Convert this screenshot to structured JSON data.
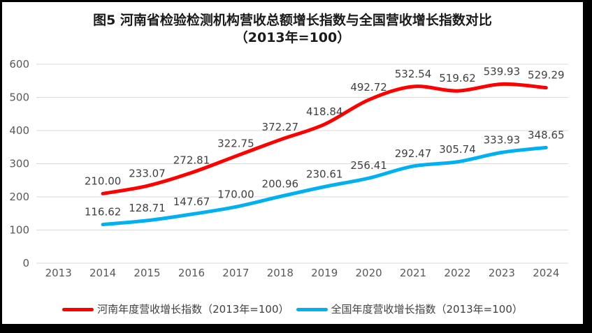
{
  "title": {
    "line1": "图5  河南省检验检测机构营收总额增长指数与全国营收增长指数对比",
    "line2": "（2013年=100）"
  },
  "colors": {
    "henan_line": "#FF0000",
    "national_line": "#00B0F0",
    "gridline": "#D9D9D9",
    "axis_text": "#595959",
    "label_text": "#404040",
    "frame_border": "#000000"
  },
  "chart_data": {
    "type": "line",
    "title": "图5 河南省检验检测机构营收总额增长指数与全国营收增长指数对比（2013年=100）",
    "categories": [
      "2013",
      "2014",
      "2015",
      "2016",
      "2017",
      "2018",
      "2019",
      "2020",
      "2021",
      "2022",
      "2023",
      "2024"
    ],
    "series": [
      {
        "name": "河南年度营收增长指数（2013年=100）",
        "color": "#FF0000",
        "values": [
          null,
          210.0,
          233.07,
          272.81,
          322.75,
          372.27,
          418.84,
          492.72,
          532.54,
          519.62,
          539.93,
          529.29
        ]
      },
      {
        "name": "全国年度营收增长指数（2013年=100）",
        "color": "#00B0F0",
        "values": [
          null,
          116.62,
          128.71,
          147.67,
          170.0,
          200.96,
          230.61,
          256.41,
          292.47,
          305.74,
          333.93,
          348.65
        ]
      }
    ],
    "ylim": [
      0,
      600
    ],
    "ytick_step": 100,
    "yticks": [
      "0",
      "100",
      "200",
      "300",
      "400",
      "500",
      "600"
    ],
    "grid": true,
    "data_labels": true,
    "label_decimals": 2,
    "legend_position": "bottom",
    "xlabel": "",
    "ylabel": ""
  },
  "legend": {
    "items": [
      {
        "label": "河南年度营收增长指数（2013年=100）",
        "color": "#FF0000"
      },
      {
        "label": "全国年度营收增长指数（2013年=100）",
        "color": "#00B0F0"
      }
    ]
  }
}
